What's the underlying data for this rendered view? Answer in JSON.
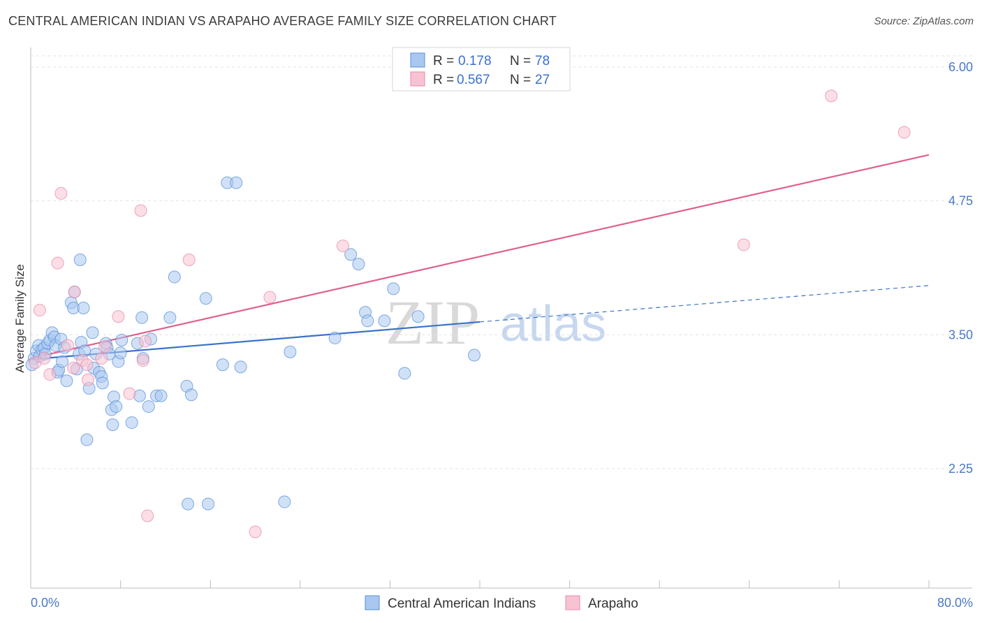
{
  "header": {
    "title": "CENTRAL AMERICAN INDIAN VS ARAPAHO AVERAGE FAMILY SIZE CORRELATION CHART",
    "source": "Source: ZipAtlas.com"
  },
  "legend_top": {
    "rows": [
      {
        "r_label": "R =",
        "r_value": "0.178",
        "n_label": "N =",
        "n_value": "78",
        "color": "#a9c8f0"
      },
      {
        "r_label": "R =",
        "r_value": "0.567",
        "n_label": "N =",
        "n_value": "27",
        "color": "#f7b9cb"
      }
    ]
  },
  "legend_bottom": {
    "items": [
      {
        "label": "Central American Indians",
        "color": "#a9c8f0"
      },
      {
        "label": "Arapaho",
        "color": "#f7b9cb"
      }
    ]
  },
  "watermark": {
    "part1": "ZIP",
    "part2": "atlas"
  },
  "colors": {
    "blue_fill": "#a9c8f0",
    "blue_stroke": "#5a8fd6",
    "blue_line": "#3a72c8",
    "pink_fill": "#f7c3d2",
    "pink_stroke": "#e88aa8",
    "pink_line": "#e0608c",
    "tick_text": "#4a78c9",
    "grid": "#e3e3e3"
  },
  "chart_data": {
    "type": "scatter",
    "title": "CENTRAL AMERICAN INDIAN VS ARAPAHO AVERAGE FAMILY SIZE CORRELATION CHART",
    "xlabel": "",
    "ylabel": "Average Family Size",
    "xlim": [
      0,
      80
    ],
    "ylim": [
      1.2,
      6.2
    ],
    "x_tick_labels": [
      "0.0%",
      "80.0%"
    ],
    "y_ticks": [
      2.25,
      3.5,
      4.75,
      6.0
    ],
    "y_tick_labels": [
      "2.25",
      "3.50",
      "4.75",
      "6.00"
    ],
    "grid": true,
    "legend_position": "top-center",
    "series": [
      {
        "name": "Central American Indians",
        "points": [
          [
            0.3,
            3.28
          ],
          [
            0.5,
            3.35
          ],
          [
            0.7,
            3.4
          ],
          [
            0.8,
            3.3
          ],
          [
            1.0,
            3.36
          ],
          [
            1.2,
            3.38
          ],
          [
            1.3,
            3.32
          ],
          [
            1.5,
            3.42
          ],
          [
            1.7,
            3.45
          ],
          [
            1.9,
            3.52
          ],
          [
            2.1,
            3.48
          ],
          [
            2.2,
            3.4
          ],
          [
            2.4,
            3.15
          ],
          [
            2.5,
            3.17
          ],
          [
            2.7,
            3.46
          ],
          [
            2.8,
            3.25
          ],
          [
            3.0,
            3.38
          ],
          [
            3.2,
            3.07
          ],
          [
            3.6,
            3.8
          ],
          [
            3.8,
            3.75
          ],
          [
            3.9,
            3.9
          ],
          [
            4.1,
            3.18
          ],
          [
            4.3,
            3.32
          ],
          [
            4.4,
            4.2
          ],
          [
            4.5,
            3.43
          ],
          [
            4.7,
            3.75
          ],
          [
            4.8,
            3.35
          ],
          [
            5.0,
            2.52
          ],
          [
            5.2,
            3.0
          ],
          [
            5.5,
            3.52
          ],
          [
            5.6,
            3.19
          ],
          [
            5.8,
            3.32
          ],
          [
            6.1,
            3.15
          ],
          [
            6.3,
            3.11
          ],
          [
            6.4,
            3.05
          ],
          [
            6.7,
            3.42
          ],
          [
            6.8,
            3.38
          ],
          [
            7.0,
            3.32
          ],
          [
            7.2,
            2.8
          ],
          [
            7.3,
            2.66
          ],
          [
            7.4,
            2.92
          ],
          [
            7.6,
            2.83
          ],
          [
            7.8,
            3.25
          ],
          [
            8.0,
            3.33
          ],
          [
            8.1,
            3.45
          ],
          [
            9.0,
            2.68
          ],
          [
            9.5,
            3.42
          ],
          [
            9.7,
            2.93
          ],
          [
            9.9,
            3.66
          ],
          [
            10.0,
            3.28
          ],
          [
            10.5,
            2.83
          ],
          [
            10.7,
            3.46
          ],
          [
            11.2,
            2.93
          ],
          [
            11.6,
            2.93
          ],
          [
            12.4,
            3.66
          ],
          [
            12.8,
            4.04
          ],
          [
            13.9,
            3.02
          ],
          [
            14.0,
            1.92
          ],
          [
            14.3,
            2.94
          ],
          [
            15.6,
            3.84
          ],
          [
            15.8,
            1.92
          ],
          [
            17.1,
            3.22
          ],
          [
            17.5,
            4.92
          ],
          [
            18.3,
            4.92
          ],
          [
            18.7,
            3.2
          ],
          [
            22.6,
            1.94
          ],
          [
            23.1,
            3.34
          ],
          [
            27.1,
            3.47
          ],
          [
            28.5,
            4.25
          ],
          [
            29.2,
            4.16
          ],
          [
            29.8,
            3.71
          ],
          [
            30.0,
            3.63
          ],
          [
            31.5,
            3.63
          ],
          [
            32.3,
            3.93
          ],
          [
            33.3,
            3.14
          ],
          [
            34.5,
            3.67
          ],
          [
            39.5,
            3.31
          ],
          [
            0.1,
            3.22
          ]
        ],
        "trend_solid": [
          [
            0,
            3.27
          ],
          [
            40,
            3.62
          ]
        ],
        "trend_dashed": [
          [
            40,
            3.62
          ],
          [
            80,
            3.96
          ]
        ]
      },
      {
        "name": "Arapaho",
        "points": [
          [
            0.4,
            3.24
          ],
          [
            0.8,
            3.73
          ],
          [
            1.2,
            3.28
          ],
          [
            1.7,
            3.13
          ],
          [
            2.4,
            4.17
          ],
          [
            2.7,
            4.82
          ],
          [
            3.3,
            3.4
          ],
          [
            3.8,
            3.19
          ],
          [
            3.9,
            3.9
          ],
          [
            4.6,
            3.26
          ],
          [
            5.0,
            3.22
          ],
          [
            5.1,
            3.08
          ],
          [
            6.3,
            3.28
          ],
          [
            6.6,
            3.39
          ],
          [
            7.8,
            3.67
          ],
          [
            8.8,
            2.95
          ],
          [
            10.0,
            3.26
          ],
          [
            10.2,
            3.44
          ],
          [
            9.8,
            4.66
          ],
          [
            10.4,
            1.81
          ],
          [
            14.1,
            4.2
          ],
          [
            20.0,
            1.66
          ],
          [
            21.3,
            3.85
          ],
          [
            27.8,
            4.33
          ],
          [
            63.5,
            4.34
          ],
          [
            71.3,
            5.73
          ],
          [
            77.8,
            5.39
          ]
        ],
        "trend_solid": [
          [
            0,
            3.28
          ],
          [
            80,
            5.18
          ]
        ]
      }
    ]
  }
}
